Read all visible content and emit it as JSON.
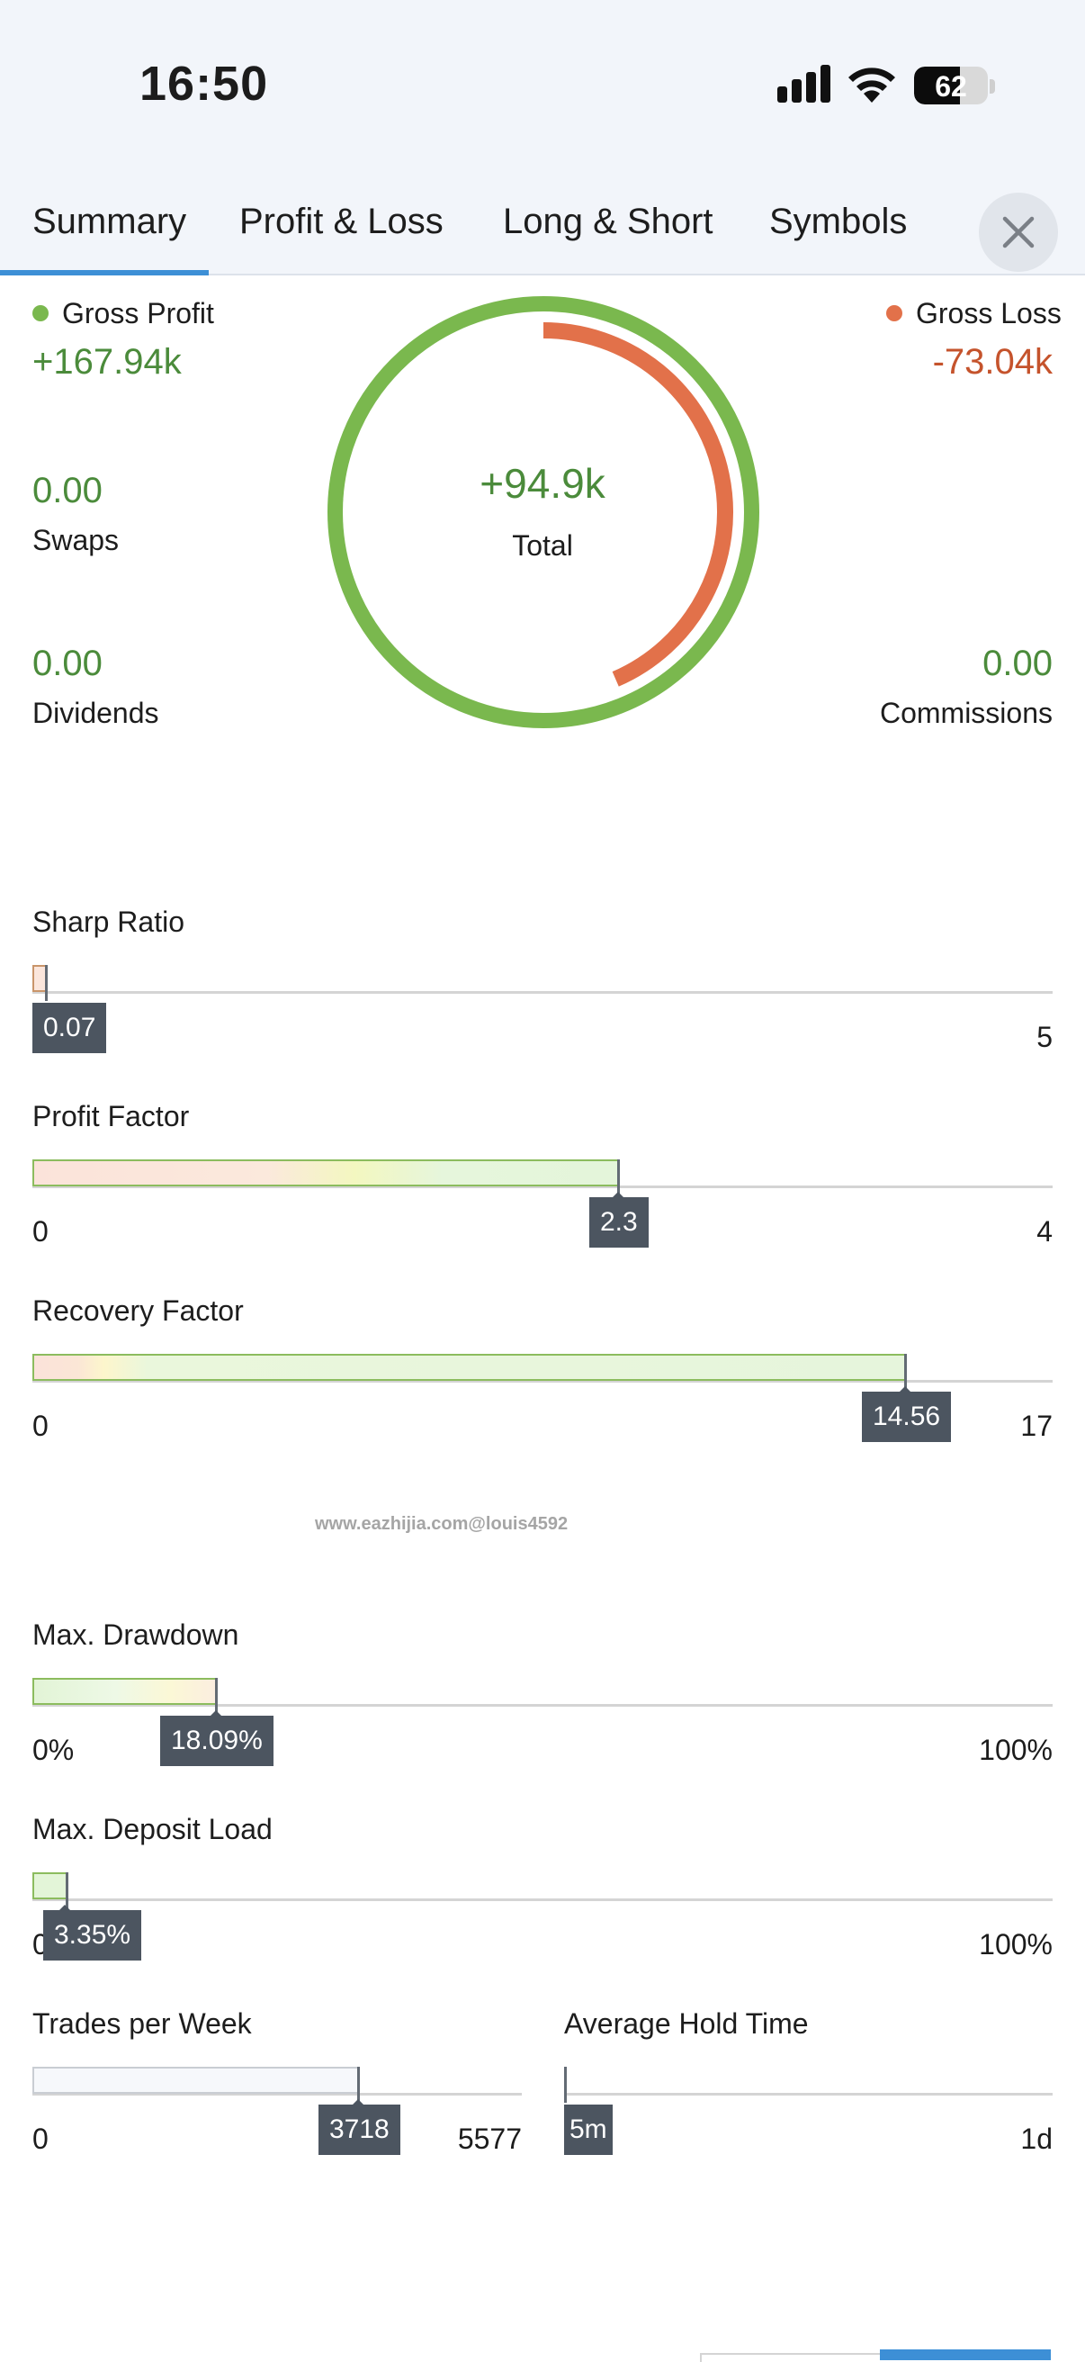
{
  "status_bar": {
    "time": "16:50",
    "battery": "62"
  },
  "tabs": [
    {
      "label": "Summary",
      "active": true
    },
    {
      "label": "Profit & Loss"
    },
    {
      "label": "Long & Short"
    },
    {
      "label": "Symbols"
    }
  ],
  "summary": {
    "gross_profit": {
      "label": "Gross Profit",
      "value": "+167.94k"
    },
    "gross_loss": {
      "label": "Gross Loss",
      "value": "-73.04k"
    },
    "swaps": {
      "label": "Swaps",
      "value": "0.00"
    },
    "dividends": {
      "label": "Dividends",
      "value": "0.00"
    },
    "commissions": {
      "label": "Commissions",
      "value": "0.00"
    },
    "total": {
      "label": "Total",
      "value": "+94.9k"
    },
    "loss_fraction": 0.435
  },
  "metrics": {
    "sharp_ratio": {
      "label": "Sharp Ratio",
      "value": "0.07",
      "max": "5",
      "fraction": 0.014
    },
    "profit_factor": {
      "label": "Profit Factor",
      "value": "2.3",
      "min": "0",
      "max": "4",
      "fraction": 0.575
    },
    "recovery_factor": {
      "label": "Recovery Factor",
      "value": "14.56",
      "min": "0",
      "max": "17",
      "fraction": 0.856
    },
    "max_drawdown": {
      "label": "Max. Drawdown",
      "value": "18.09%",
      "min": "0%",
      "max": "100%",
      "fraction": 0.181
    },
    "max_deposit_load": {
      "label": "Max. Deposit Load",
      "value": "3.35%",
      "min": "0",
      "max": "100%",
      "fraction": 0.034
    },
    "trades_per_week": {
      "label": "Trades per Week",
      "value": "3718",
      "min": "0",
      "max": "5577",
      "fraction": 0.667
    },
    "avg_hold_time": {
      "label": "Average Hold Time",
      "value": "5m",
      "max": "1d",
      "fraction": 0.0
    }
  },
  "watermark": "www.eazhijia.com@louis4592",
  "colors": {
    "profit": "#7ab84e",
    "loss": "#e2714a",
    "accent": "#3d8fd6"
  }
}
